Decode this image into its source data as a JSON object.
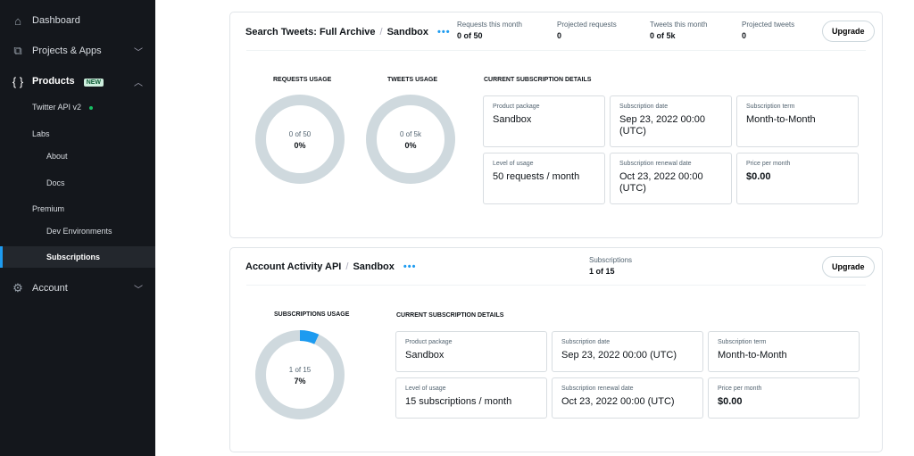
{
  "sidebar": {
    "items": [
      {
        "label": "Dashboard",
        "icon": "home-icon"
      },
      {
        "label": "Projects & Apps",
        "icon": "sitemap-icon"
      },
      {
        "label": "Products",
        "icon": "braces-icon",
        "badge": "NEW"
      },
      {
        "label": "Account",
        "icon": "gear-icon"
      }
    ],
    "sub": {
      "twitter_api": "Twitter API v2",
      "labs": "Labs",
      "about": "About",
      "docs": "Docs",
      "premium": "Premium",
      "dev_env": "Dev Environments",
      "subscriptions": "Subscriptions"
    }
  },
  "card1": {
    "name": "Search Tweets: Full Archive",
    "env": "Sandbox",
    "metrics": [
      {
        "label": "Requests this month",
        "value": "0 of 50"
      },
      {
        "label": "Projected requests",
        "value": "0"
      },
      {
        "label": "Tweets this month",
        "value": "0 of 5k"
      },
      {
        "label": "Projected tweets",
        "value": "0"
      }
    ],
    "upgrade": "Upgrade",
    "donuts": [
      {
        "title": "REQUESTS USAGE",
        "text": "0 of 50",
        "pct": "0%",
        "fraction": 0
      },
      {
        "title": "TWEETS USAGE",
        "text": "0 of 5k",
        "pct": "0%",
        "fraction": 0
      }
    ],
    "details_title": "CURRENT SUBSCRIPTION DETAILS",
    "details": [
      {
        "k": "Product package",
        "v": "Sandbox"
      },
      {
        "k": "Subscription date",
        "v": "Sep 23, 2022 00:00 (UTC)"
      },
      {
        "k": "Subscription term",
        "v": "Month-to-Month"
      },
      {
        "k": "Level of usage",
        "v": "50 requests / month"
      },
      {
        "k": "Subscription renewal date",
        "v": "Oct 23, 2022 00:00 (UTC)"
      },
      {
        "k": "Price per month",
        "v": "$0.00"
      }
    ]
  },
  "card2": {
    "name": "Account Activity API",
    "env": "Sandbox",
    "metrics": [
      {
        "label": "Subscriptions",
        "value": "1 of 15"
      }
    ],
    "upgrade": "Upgrade",
    "donuts": [
      {
        "title": "SUBSCRIPTIONS USAGE",
        "text": "1 of 15",
        "pct": "7%",
        "fraction": 0.07
      }
    ],
    "details_title": "CURRENT SUBSCRIPTION DETAILS",
    "details": [
      {
        "k": "Product package",
        "v": "Sandbox"
      },
      {
        "k": "Subscription date",
        "v": "Sep 23, 2022 00:00 (UTC)"
      },
      {
        "k": "Subscription term",
        "v": "Month-to-Month"
      },
      {
        "k": "Level of usage",
        "v": "15 subscriptions / month"
      },
      {
        "k": "Subscription renewal date",
        "v": "Oct 23, 2022 00:00 (UTC)"
      },
      {
        "k": "Price per month",
        "v": "$0.00"
      }
    ]
  },
  "colors": {
    "accent": "#1d9bf0",
    "ring": "#cfd9de",
    "sidebar": "#14171c",
    "active_dot": "#17bf63"
  }
}
